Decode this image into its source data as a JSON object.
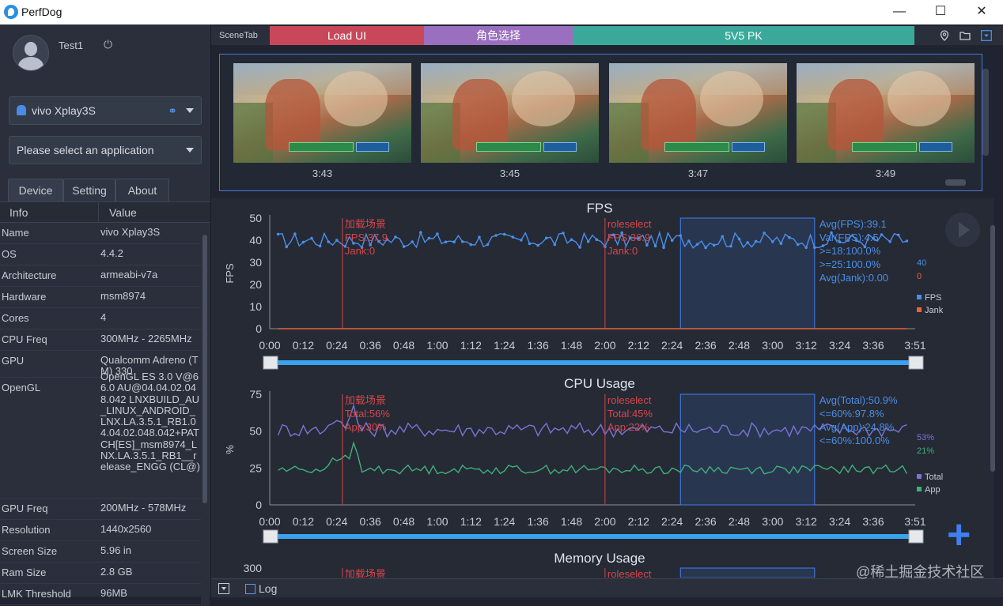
{
  "window": {
    "title": "PerfDog",
    "minimize": "—",
    "maximize": "☐",
    "close": "✕"
  },
  "user": {
    "name": "Test1"
  },
  "device": {
    "name": "vivo Xplay3S"
  },
  "app_select": {
    "placeholder": "Please select an application"
  },
  "tabs": [
    "Device",
    "Setting",
    "About"
  ],
  "info_headers": {
    "key": "Info",
    "value": "Value"
  },
  "info_rows": [
    {
      "k": "Name",
      "v": "vivo Xplay3S"
    },
    {
      "k": "OS",
      "v": "4.4.2"
    },
    {
      "k": "Architecture",
      "v": "armeabi-v7a"
    },
    {
      "k": "Hardware",
      "v": "msm8974"
    },
    {
      "k": "Cores",
      "v": "4"
    },
    {
      "k": "CPU Freq",
      "v": "300MHz - 2265MHz"
    },
    {
      "k": "GPU",
      "v": "Qualcomm Adreno (TM) 330"
    },
    {
      "k": "OpenGL",
      "v": "OpenGL ES 3.0 V@66.0 AU@04.04.02.048.042 LNXBUILD_AU_LINUX_ANDROID_LNX.LA.3.5.1_RB1.04.04.02.048.042+PATCH[ES]_msm8974_LNX.LA.3.5.1_RB1__release_ENGG (CL@)"
    },
    {
      "k": "GPU Freq",
      "v": "200MHz - 578MHz"
    },
    {
      "k": "Resolution",
      "v": "1440x2560"
    },
    {
      "k": "Screen Size",
      "v": "5.96 in"
    },
    {
      "k": "Ram Size",
      "v": "2.8 GB"
    },
    {
      "k": "LMK Threshold",
      "v": "96MB"
    }
  ],
  "scenes": {
    "label": "SceneTab",
    "segments": [
      {
        "label": "Load UI",
        "color": "#c8485a"
      },
      {
        "label": "角色选择",
        "color": "#9a6fc0"
      },
      {
        "label": "5V5 PK",
        "color": "#3aa99a"
      }
    ]
  },
  "screenshots": [
    "3:43",
    "3:45",
    "3:47",
    "3:49"
  ],
  "log_label": "Log",
  "watermark": "@稀土掘金技术社区",
  "colors": {
    "fps": "#4a8ee8",
    "jank": "#e8643a",
    "total": "#7a74d6",
    "app": "#3fb07a",
    "marker": "#d8464a",
    "accent": "#3f7ff0"
  },
  "chart_data": [
    {
      "type": "line",
      "title": "FPS",
      "ylabel": "FPS",
      "ylim": [
        0,
        50
      ],
      "yticks": [
        0,
        10,
        20,
        30,
        40,
        50
      ],
      "xticks": [
        "0:00",
        "0:12",
        "0:24",
        "0:36",
        "0:48",
        "1:00",
        "1:12",
        "1:24",
        "1:36",
        "1:48",
        "2:00",
        "2:12",
        "2:24",
        "2:36",
        "2:48",
        "3:00",
        "3:12",
        "3:24",
        "3:36",
        "3:51"
      ],
      "series": [
        {
          "name": "FPS",
          "base": 40,
          "amp": 3.5,
          "current": "40"
        },
        {
          "name": "Jank",
          "base": 0,
          "amp": 0,
          "current": "0"
        }
      ],
      "markers": [
        {
          "x": "0:26",
          "lines": [
            "加载场景",
            "FPS:37.9",
            "Jank:0"
          ]
        },
        {
          "x": "2:00",
          "lines": [
            "roleselect",
            "FPS:36.9",
            "Jank:0"
          ]
        }
      ],
      "stats": [
        "Avg(FPS):39.1",
        "Var(FPS):4.5",
        ">=18:100.0%",
        ">=25:100.0%",
        "Avg(Jank):0.00"
      ]
    },
    {
      "type": "line",
      "title": "CPU Usage",
      "ylabel": "%",
      "ylim": [
        0,
        75
      ],
      "yticks": [
        0,
        25,
        50,
        75
      ],
      "xticks": [
        "0:00",
        "0:12",
        "0:24",
        "0:36",
        "0:48",
        "1:00",
        "1:12",
        "1:24",
        "1:36",
        "1:48",
        "2:00",
        "2:12",
        "2:24",
        "2:36",
        "2:48",
        "3:00",
        "3:12",
        "3:24",
        "3:36",
        "3:51"
      ],
      "series": [
        {
          "name": "Total",
          "base": 51,
          "amp": 5,
          "current": "53%"
        },
        {
          "name": "App",
          "base": 24,
          "amp": 3,
          "current": "21%"
        }
      ],
      "markers": [
        {
          "x": "0:26",
          "lines": [
            "加载场景",
            "Total:56%",
            "App:30%"
          ]
        },
        {
          "x": "2:00",
          "lines": [
            "roleselect",
            "Total:45%",
            "App:22%"
          ]
        }
      ],
      "stats": [
        "Avg(Total):50.9%",
        "<=60%:97.8%",
        "Avg(App):24.8%",
        "<=60%:100.0%"
      ]
    },
    {
      "type": "line",
      "title": "Memory Usage",
      "ylim": [
        0,
        300
      ],
      "yticks": [
        300
      ],
      "markers": [
        {
          "x": "0:26",
          "lines": [
            "加载场景"
          ]
        },
        {
          "x": "2:00",
          "lines": [
            "roleselect"
          ]
        }
      ]
    }
  ]
}
